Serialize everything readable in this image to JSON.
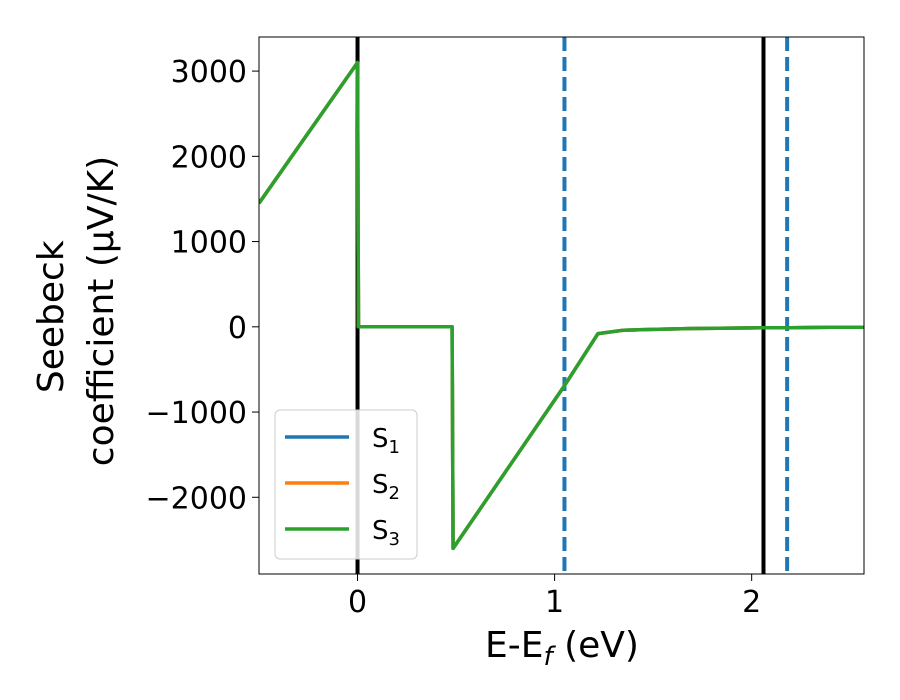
{
  "chart_data": {
    "type": "line",
    "xlabel": "E-Eƒ (eV)",
    "ylabel_lines": [
      "Seebeck",
      "coefficient  (μV/K)"
    ],
    "xlim": [
      -0.5,
      2.57
    ],
    "ylim": [
      -2900,
      3400
    ],
    "xticks": [
      0,
      1,
      2
    ],
    "yticks": [
      -2000,
      -1000,
      0,
      1000,
      2000,
      3000
    ],
    "xtick_labels": [
      "0",
      "1",
      "2"
    ],
    "ytick_labels": [
      "−2000",
      "−1000",
      "0",
      "1000",
      "2000",
      "3000"
    ],
    "grid": false,
    "legend_position": "lower-left",
    "series": [
      {
        "name": "S1",
        "color": "#1f77b4",
        "x": [
          -0.5,
          0.0,
          0.005,
          0.48,
          0.485,
          1.05,
          1.22,
          1.35,
          1.5,
          1.7,
          1.9,
          2.05,
          2.2,
          2.4,
          2.57
        ],
        "y": [
          1450,
          3100,
          0,
          0,
          -2600,
          -690,
          -80,
          -40,
          -30,
          -20,
          -15,
          -10,
          -10,
          -5,
          -5
        ]
      },
      {
        "name": "S2",
        "color": "#ff7f0e",
        "x": [
          -0.5,
          0.0,
          0.005,
          0.48,
          0.485,
          1.05,
          1.22,
          1.35,
          1.5,
          1.7,
          1.9,
          2.05,
          2.2,
          2.4,
          2.57
        ],
        "y": [
          1450,
          3100,
          0,
          0,
          -2600,
          -690,
          -80,
          -40,
          -30,
          -20,
          -15,
          -10,
          -10,
          -5,
          -5
        ]
      },
      {
        "name": "S3",
        "color": "#2ca02c",
        "x": [
          -0.5,
          0.0,
          0.005,
          0.48,
          0.485,
          1.05,
          1.22,
          1.35,
          1.5,
          1.7,
          1.9,
          2.05,
          2.2,
          2.4,
          2.57
        ],
        "y": [
          1450,
          3100,
          0,
          0,
          -2600,
          -690,
          -80,
          -40,
          -30,
          -20,
          -15,
          -10,
          -10,
          -5,
          -5
        ]
      }
    ],
    "vlines": [
      {
        "x": 0.0,
        "color": "#000000",
        "style": "solid"
      },
      {
        "x": 2.06,
        "color": "#000000",
        "style": "solid"
      },
      {
        "x": 1.05,
        "color": "#1f77b4",
        "style": "dashed"
      },
      {
        "x": 2.18,
        "color": "#1f77b4",
        "style": "dashed"
      }
    ],
    "legend": {
      "entries": [
        {
          "base": "S",
          "sub": "1",
          "color": "#1f77b4"
        },
        {
          "base": "S",
          "sub": "2",
          "color": "#ff7f0e"
        },
        {
          "base": "S",
          "sub": "3",
          "color": "#2ca02c"
        }
      ]
    }
  }
}
